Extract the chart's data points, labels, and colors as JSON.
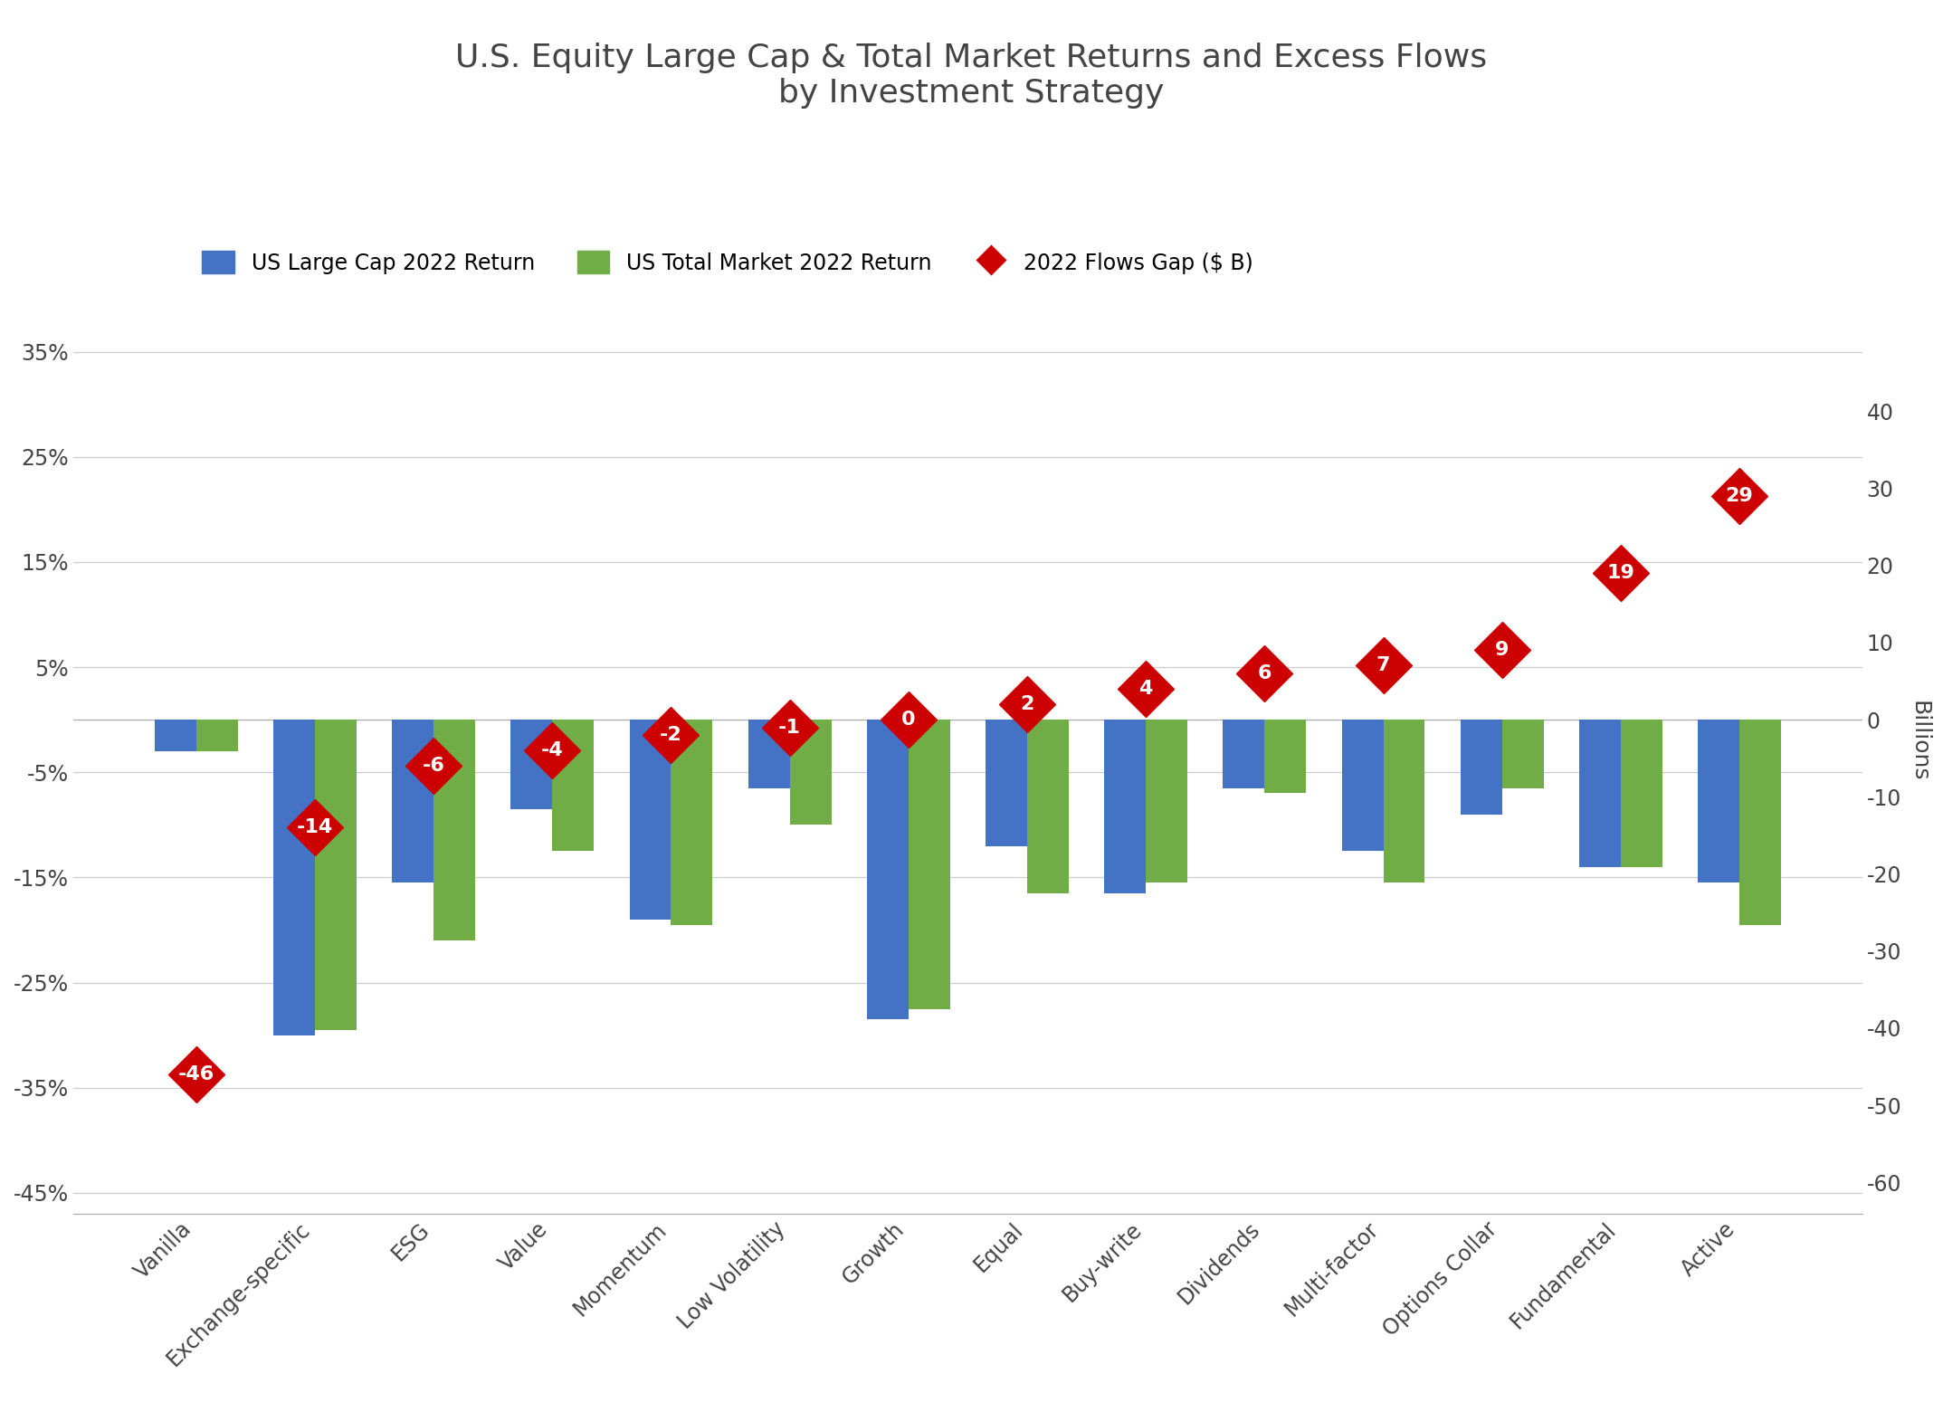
{
  "title": "U.S. Equity Large Cap & Total Market Returns and Excess Flows\nby Investment Strategy",
  "categories": [
    "Vanilla",
    "Exchange-specific",
    "ESG",
    "Value",
    "Momentum",
    "Low Volatility",
    "Growth",
    "Equal",
    "Buy-write",
    "Dividends",
    "Multi-factor",
    "Options Collar",
    "Fundamental",
    "Active"
  ],
  "large_cap_returns": [
    -0.03,
    -0.3,
    -0.155,
    -0.085,
    -0.19,
    -0.065,
    -0.285,
    -0.12,
    -0.165,
    -0.065,
    -0.125,
    -0.09,
    -0.14,
    -0.155
  ],
  "total_market_returns": [
    -0.03,
    -0.295,
    -0.21,
    -0.125,
    -0.195,
    -0.1,
    -0.275,
    -0.165,
    -0.155,
    -0.07,
    -0.155,
    -0.065,
    -0.14,
    -0.195
  ],
  "flows_gap": [
    -46,
    -14,
    -6,
    -4,
    -2,
    -1,
    0,
    2,
    4,
    6,
    7,
    9,
    19,
    29
  ],
  "bar_color_blue": "#4472C4",
  "bar_color_green": "#70AD47",
  "diamond_color": "#CC0000",
  "diamond_text_color": "#FFFFFF",
  "ylabel_right": "Billions",
  "ylim_left": [
    -0.47,
    0.43
  ],
  "ylim_right": [
    -64.067,
    58.594
  ],
  "yticks_left": [
    -0.45,
    -0.35,
    -0.25,
    -0.15,
    -0.05,
    0.05,
    0.15,
    0.25,
    0.35
  ],
  "ytick_labels_left": [
    "-45%",
    "-35%",
    "-25%",
    "-15%",
    "-5%",
    "5%",
    "15%",
    "25%",
    "35%"
  ],
  "yticks_right": [
    -60,
    -50,
    -40,
    -30,
    -20,
    -10,
    0,
    10,
    20,
    30,
    40
  ],
  "background_color": "#FFFFFF",
  "title_fontsize": 26,
  "legend_fontsize": 17,
  "tick_fontsize": 17,
  "diamond_fontsize": 16,
  "diamond_markersize": 32
}
